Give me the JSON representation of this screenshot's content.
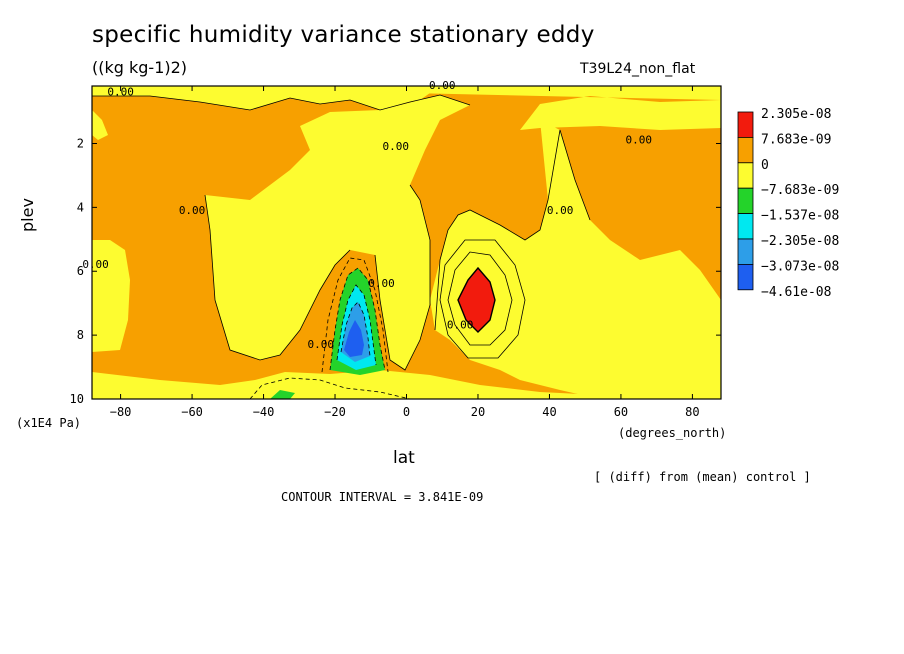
{
  "header": {
    "title": "specific humidity variance stationary eddy",
    "units": "((kg kg-1)2)",
    "run_name": "T39L24_non_flat"
  },
  "axes": {
    "ylabel": "plev",
    "yunit": "(x1E4 Pa)",
    "xlabel": "lat",
    "xunit": "(degrees_north)"
  },
  "footer": {
    "diff_note": "[ (diff) from (mean) control ]",
    "contour_interval": "CONTOUR INTERVAL = 3.841E-09"
  },
  "chart_data": {
    "type": "heatmap",
    "title": "specific humidity variance stationary eddy",
    "xlabel": "lat",
    "ylabel": "plev",
    "x_ticks": [
      -80,
      -60,
      -40,
      -20,
      0,
      20,
      40,
      60,
      80
    ],
    "y_ticks": [
      2,
      4,
      6,
      8,
      10
    ],
    "xlim": [
      -88,
      88
    ],
    "ylim": [
      10,
      0.2
    ],
    "contour_label": "0.00",
    "colors": {
      "red": "#f21b0d",
      "orange": "#f7a000",
      "yellow": "#fdfc30",
      "green": "#24d32a",
      "cyan": "#00e8f0",
      "lightblue": "#2d9ee8",
      "blue": "#1e5ff0"
    },
    "legend": [
      {
        "label": "2.305e-08",
        "color": "#f21b0d"
      },
      {
        "label": "7.683e-09",
        "color": "#f7a000"
      },
      {
        "label": "0",
        "color": "#fdfc30"
      },
      {
        "label": "−7.683e-09",
        "color": "#24d32a"
      },
      {
        "label": "−1.537e-08",
        "color": "#00e8f0"
      },
      {
        "label": "−2.305e-08",
        "color": "#2d9ee8"
      },
      {
        "label": "−3.073e-08",
        "color": "#1e5ff0"
      },
      {
        "label": "−4.61e-08",
        "color": ""
      }
    ],
    "contour_labels": [
      {
        "lat": -80,
        "plev": 0.5,
        "text": "0.00"
      },
      {
        "lat": 10,
        "plev": 0.3,
        "text": "0.00"
      },
      {
        "lat": 65,
        "plev": 2.0,
        "text": "0.00"
      },
      {
        "lat": -3,
        "plev": 2.2,
        "text": "0.00"
      },
      {
        "lat": -60,
        "plev": 4.2,
        "text": "0.00"
      },
      {
        "lat": -87,
        "plev": 5.9,
        "text": "0.00"
      },
      {
        "lat": 43,
        "plev": 4.2,
        "text": "0.00"
      },
      {
        "lat": -7,
        "plev": 6.5,
        "text": "0.00"
      },
      {
        "lat": 15,
        "plev": 7.8,
        "text": "0.00"
      },
      {
        "lat": -24,
        "plev": 8.4,
        "text": "0.00"
      }
    ]
  }
}
